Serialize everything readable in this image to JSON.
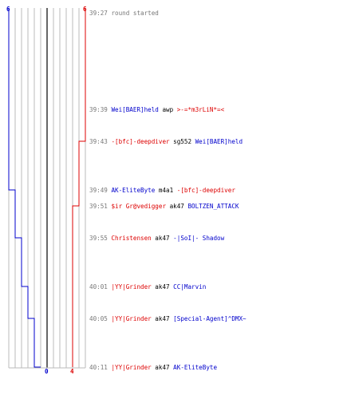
{
  "chart_data": {
    "type": "line",
    "title": "",
    "xlabel": "",
    "ylabel": "",
    "grid": true,
    "x_range": [
      0,
      6
    ],
    "colors": {
      "blue": "#0000cc",
      "red": "#dd0000",
      "grid": "#bbbbbb",
      "center": "#666666",
      "time": "#777777",
      "text": "#000000"
    },
    "top_labels": {
      "blue": "6",
      "red": "6"
    },
    "bottom_labels": {
      "blue": "0",
      "red": "4"
    },
    "series": [
      {
        "key": "blue",
        "values": [
          6,
          6,
          6,
          5,
          5,
          4,
          3,
          2,
          1,
          0
        ]
      },
      {
        "key": "red",
        "values": [
          6,
          6,
          5,
          5,
          4,
          4,
          4,
          4,
          4,
          4
        ]
      }
    ],
    "events": [
      {
        "time": "39:27",
        "parts": [
          {
            "t": "round started",
            "c": "time"
          }
        ]
      },
      {
        "time": "39:39",
        "parts": [
          {
            "t": "Wei[BAER]held",
            "c": "blue"
          },
          {
            "t": " awp ",
            "c": "text"
          },
          {
            "t": ">-=*m3rLiN*=<",
            "c": "red"
          }
        ]
      },
      {
        "time": "39:43",
        "parts": [
          {
            "t": "-[bfc]-deepdiver",
            "c": "red"
          },
          {
            "t": " sg552 ",
            "c": "text"
          },
          {
            "t": "Wei[BAER]held",
            "c": "blue"
          }
        ]
      },
      {
        "time": "39:49",
        "parts": [
          {
            "t": "AK-EliteByte",
            "c": "blue"
          },
          {
            "t": " m4a1 ",
            "c": "text"
          },
          {
            "t": "-[bfc]-deepdiver",
            "c": "red"
          }
        ]
      },
      {
        "time": "39:51",
        "parts": [
          {
            "t": "$ir Gr@vedigger",
            "c": "red"
          },
          {
            "t": " ak47 ",
            "c": "text"
          },
          {
            "t": "BOLTZEN_ATTACK",
            "c": "blue"
          }
        ]
      },
      {
        "time": "39:55",
        "parts": [
          {
            "t": "Christensen",
            "c": "red"
          },
          {
            "t": " ak47 ",
            "c": "text"
          },
          {
            "t": "-|SoI|- Shadow",
            "c": "blue"
          }
        ]
      },
      {
        "time": "40:01",
        "parts": [
          {
            "t": "|YY|Grinder",
            "c": "red"
          },
          {
            "t": " ak47 ",
            "c": "text"
          },
          {
            "t": "CC|Marvin",
            "c": "blue"
          }
        ]
      },
      {
        "time": "40:05",
        "parts": [
          {
            "t": "|YY|Grinder",
            "c": "red"
          },
          {
            "t": " ak47 ",
            "c": "text"
          },
          {
            "t": "[Special-Agent]^DMX~",
            "c": "blue"
          }
        ]
      },
      {
        "time": "40:11",
        "parts": [
          {
            "t": "|YY|Grinder",
            "c": "red"
          },
          {
            "t": " ak47 ",
            "c": "text"
          },
          {
            "t": "AK-EliteByte",
            "c": "blue"
          }
        ]
      }
    ]
  }
}
